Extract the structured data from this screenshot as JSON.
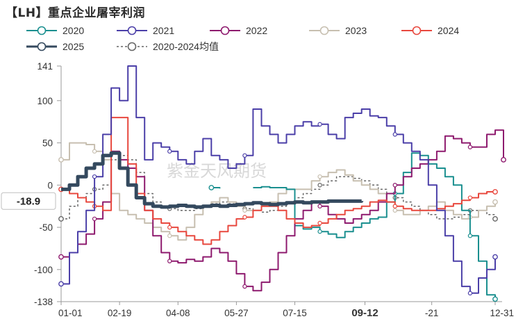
{
  "title": "【LH】重点企业屠宰利润",
  "watermark": "紫金天风期货",
  "chart_data": {
    "type": "line",
    "title": "【LH】重点企业屠宰利润",
    "xlabel": "",
    "ylabel": "",
    "ylim": [
      -138,
      141
    ],
    "yticks": [
      141,
      100,
      50,
      0,
      -50,
      -100,
      -138
    ],
    "x_tick_labels": [
      {
        "label": "01-01",
        "week": 0,
        "bold": false
      },
      {
        "label": "02-19",
        "week": 7,
        "bold": false
      },
      {
        "label": "04-08",
        "week": 14,
        "bold": false
      },
      {
        "label": "05-27",
        "week": 21,
        "bold": false
      },
      {
        "label": "07-15",
        "week": 28,
        "bold": false
      },
      {
        "label": "09-12",
        "week": 36.4,
        "bold": true
      },
      {
        "label": "-21",
        "week": 44.4,
        "bold": false
      },
      {
        "label": "12-31",
        "week": 52,
        "bold": false
      }
    ],
    "current_value_label": "-18.9",
    "current_value": -18.9,
    "grid": false,
    "legend_position": "top",
    "series": [
      {
        "name": "2020",
        "color": "#1a8f8f",
        "width": 2,
        "dash": "",
        "values": [
          null,
          null,
          null,
          null,
          null,
          null,
          null,
          null,
          null,
          null,
          null,
          null,
          null,
          null,
          null,
          null,
          null,
          null,
          -3,
          -4,
          null,
          null,
          null,
          -3,
          -2,
          -3,
          -3,
          -5,
          -48,
          -52,
          -50,
          -55,
          -58,
          -62,
          -55,
          -50,
          -45,
          -40,
          -38,
          -20,
          -10,
          15,
          38,
          35,
          25,
          20,
          10,
          0,
          -30,
          -60,
          -90,
          -130,
          -135
        ]
      },
      {
        "name": "2021",
        "color": "#4b3fa8",
        "width": 2,
        "dash": "",
        "values": [
          -117,
          -80,
          -55,
          -30,
          10,
          60,
          115,
          100,
          141,
          80,
          30,
          50,
          45,
          40,
          30,
          25,
          40,
          55,
          35,
          30,
          20,
          25,
          35,
          90,
          70,
          60,
          50,
          60,
          70,
          75,
          70,
          72,
          60,
          55,
          80,
          85,
          90,
          82,
          80,
          70,
          60,
          50,
          40,
          30,
          0,
          -30,
          -60,
          -90,
          -120,
          -128,
          -110,
          -100,
          -85
        ]
      },
      {
        "name": "2022",
        "color": "#8e1a6e",
        "width": 2,
        "dash": "",
        "values": [
          -85,
          -80,
          -70,
          -58,
          -40,
          -20,
          40,
          30,
          20,
          10,
          -30,
          -60,
          -80,
          -90,
          -92,
          -88,
          -90,
          -85,
          -75,
          -80,
          -90,
          -105,
          -120,
          -125,
          -115,
          -100,
          -80,
          -60,
          -40,
          -30,
          -20,
          -25,
          -35,
          -40,
          -45,
          -40,
          -35,
          -30,
          -20,
          -10,
          0,
          10,
          20,
          25,
          30,
          40,
          58,
          55,
          50,
          45,
          45,
          60,
          65,
          30
        ]
      },
      {
        "name": "2023",
        "color": "#c7bfb0",
        "width": 2,
        "dash": "",
        "values": [
          30,
          50,
          50,
          48,
          40,
          30,
          -10,
          -30,
          -35,
          -40,
          -45,
          -50,
          -55,
          -60,
          -65,
          -50,
          -35,
          -25,
          -20,
          -15,
          -20,
          -25,
          -30,
          -30,
          -25,
          -20,
          -10,
          -5,
          -5,
          -5,
          5,
          10,
          15,
          18,
          12,
          5,
          0,
          -5,
          -10,
          -20,
          -30,
          -35,
          -35,
          -30,
          -25,
          -20,
          -30,
          -35,
          -40,
          -38,
          -30,
          -25,
          -20
        ]
      },
      {
        "name": "2024",
        "color": "#e8483e",
        "width": 2,
        "dash": "",
        "values": [
          -5,
          -10,
          -15,
          -20,
          -25,
          -30,
          80,
          80,
          25,
          -10,
          -30,
          -40,
          -45,
          -50,
          -55,
          -60,
          -65,
          -70,
          -65,
          -55,
          -48,
          -40,
          -38,
          -30,
          -25,
          -25,
          -30,
          -40,
          -45,
          -50,
          -48,
          -45,
          -40,
          -35,
          -30,
          -28,
          -25,
          -20,
          -18,
          -20,
          -25,
          -28,
          -30,
          -30,
          -30,
          -28,
          -25,
          -22,
          -18,
          -15,
          -10,
          -8,
          -8
        ]
      },
      {
        "name": "2025",
        "color": "#34495e",
        "width": 5,
        "dash": "",
        "values": [
          -5,
          0,
          10,
          20,
          25,
          35,
          38,
          20,
          0,
          -15,
          -22,
          -25,
          -26,
          -25,
          -24,
          -25,
          -26,
          -25,
          -24,
          -25,
          -24,
          -23,
          -22,
          -21,
          -22,
          -23,
          -22,
          -21,
          -20,
          -21,
          -20,
          -20,
          -19,
          -19,
          -19,
          -19,
          -18.9
        ]
      },
      {
        "name": "2020-2024均值",
        "color": "#666666",
        "width": 1.5,
        "dash": "3,3",
        "values": [
          -40,
          -25,
          -15,
          -10,
          -5,
          0,
          30,
          35,
          30,
          15,
          -10,
          -20,
          -25,
          -28,
          -30,
          -30,
          -28,
          -25,
          -22,
          -20,
          -22,
          -25,
          -28,
          -30,
          -32,
          -30,
          -25,
          -20,
          -15,
          -10,
          -5,
          0,
          5,
          10,
          10,
          8,
          5,
          0,
          -5,
          -10,
          -15,
          -20,
          -25,
          -30,
          -35,
          -40,
          -40,
          -38,
          -35,
          -30,
          -30,
          -35,
          -40
        ]
      }
    ]
  }
}
